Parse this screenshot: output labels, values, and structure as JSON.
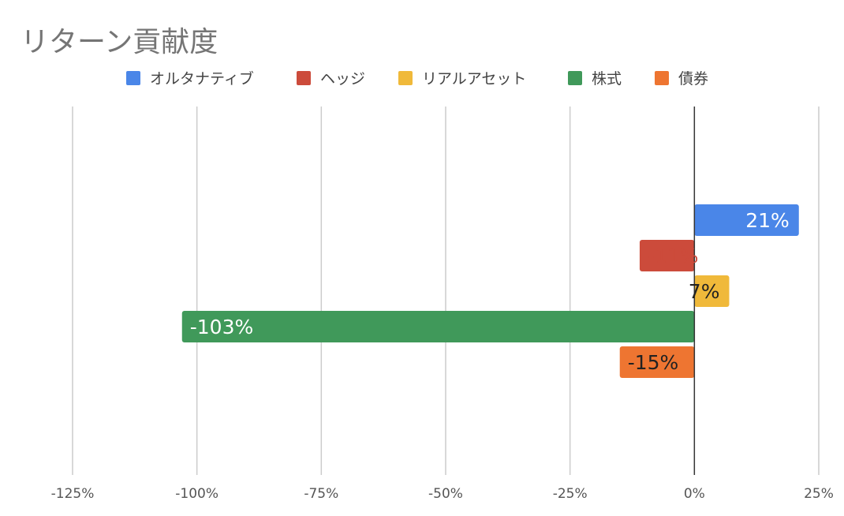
{
  "chart_data": {
    "type": "bar",
    "orientation": "horizontal",
    "title": "リターン貢献度",
    "xlabel": "",
    "ylabel": "",
    "xlim": [
      -125,
      25
    ],
    "x_ticks": [
      -125,
      -100,
      -75,
      -50,
      -25,
      0,
      25
    ],
    "x_tick_labels": [
      "-125%",
      "-100%",
      "-75%",
      "-50%",
      "-25%",
      "0%",
      "25%"
    ],
    "grid": true,
    "legend_position": "top",
    "series": [
      {
        "name": "オルタナティブ",
        "value": 21,
        "label": "21%",
        "color": "#4A86E8",
        "label_color": "#ffffff"
      },
      {
        "name": "ヘッジ",
        "value": -11,
        "label": "-11%",
        "color": "#CC4B3B",
        "label_color": "#CC4B3B"
      },
      {
        "name": "リアルアセット",
        "value": 7,
        "label": "7%",
        "color": "#F0B93A",
        "label_color": "#222222"
      },
      {
        "name": "株式",
        "value": -103,
        "label": "-103%",
        "color": "#40995A",
        "label_color": "#ffffff"
      },
      {
        "name": "債券",
        "value": -15,
        "label": "-15%",
        "color": "#EE7531",
        "label_color": "#222222"
      }
    ]
  }
}
